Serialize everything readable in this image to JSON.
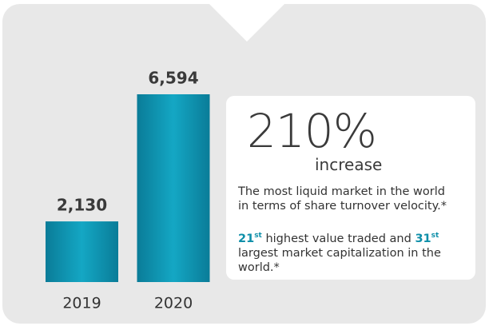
{
  "chart_data": {
    "type": "bar",
    "categories": [
      "2019",
      "2020"
    ],
    "values": [
      2130,
      6594
    ],
    "value_labels": [
      "2,130",
      "6,594"
    ],
    "color": "#0e93b0"
  },
  "callout": {
    "headline": "210%",
    "subhead": "increase",
    "paragraph_1": "The most liquid market in the world in terms of share turnover velocity.*",
    "paragraph_2": [
      "21",
      "st",
      " highest value traded and ",
      "31",
      "st",
      " largest market capitalization in the world.*"
    ]
  }
}
